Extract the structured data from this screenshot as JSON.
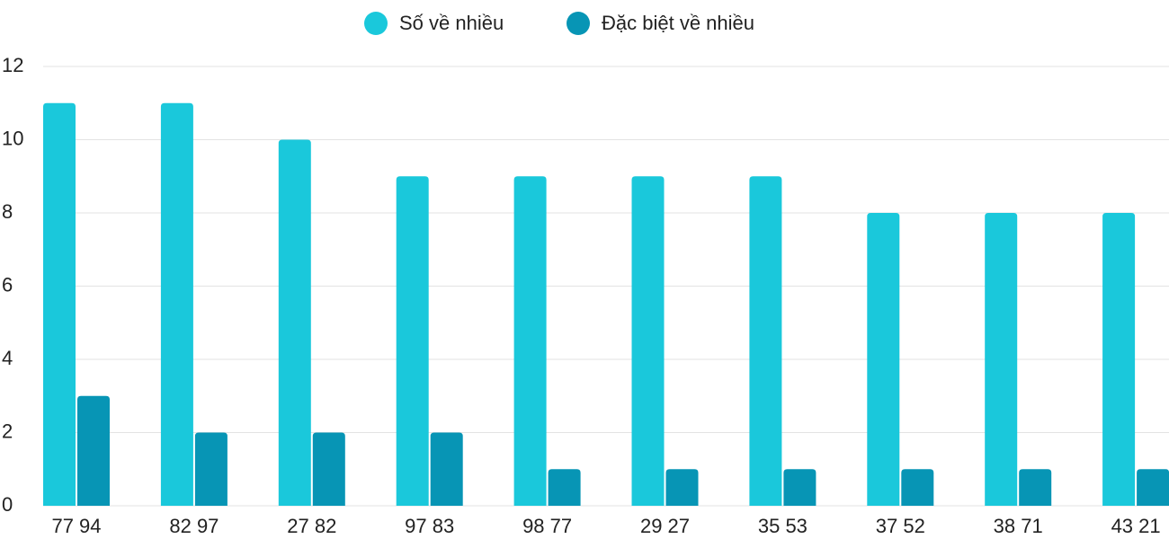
{
  "chart_data": {
    "type": "bar",
    "categories": [
      "77 94",
      "82 97",
      "27 82",
      "97 83",
      "98 77",
      "29 27",
      "35 53",
      "37 52",
      "38 71",
      "43 21"
    ],
    "series": [
      {
        "name": "Số về nhiều",
        "color": "#1ac8db",
        "values": [
          11,
          11,
          10,
          9,
          9,
          9,
          9,
          8,
          8,
          8
        ]
      },
      {
        "name": "Đặc biệt về nhiều",
        "color": "#0795b5",
        "values": [
          3,
          2,
          2,
          2,
          1,
          1,
          1,
          1,
          1,
          1
        ]
      }
    ],
    "ylim": [
      0,
      12
    ],
    "yticks": [
      0,
      2,
      4,
      6,
      8,
      10,
      12
    ],
    "grid": true,
    "legend": "top"
  }
}
